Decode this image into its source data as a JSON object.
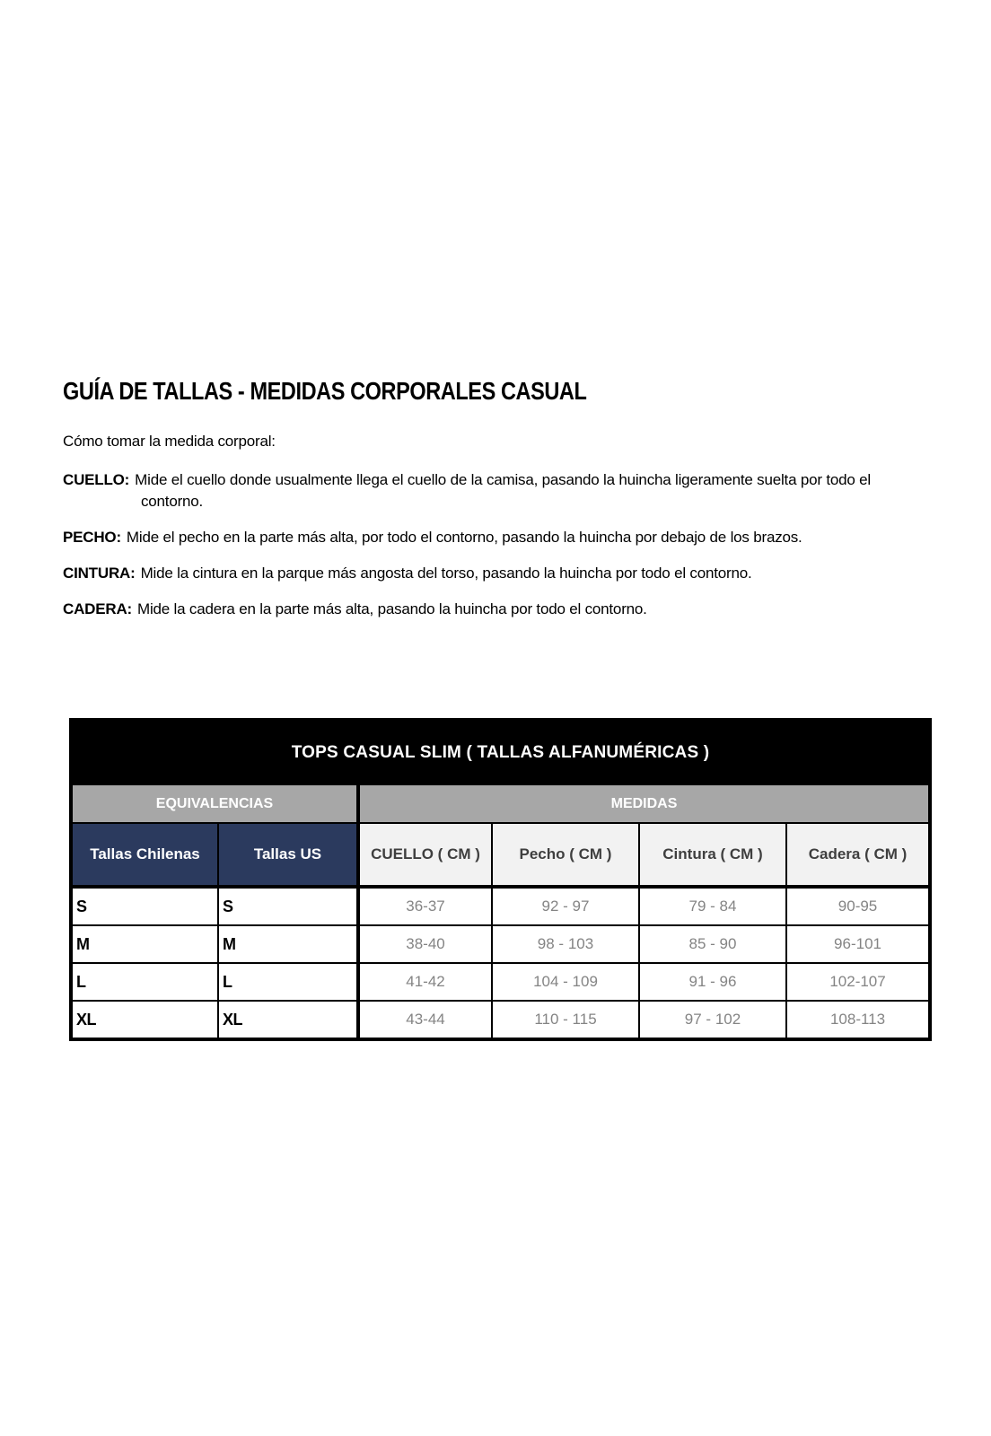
{
  "page": {
    "title": "GUÍA DE TALLAS - MEDIDAS CORPORALES CASUAL",
    "intro": "Cómo tomar la medida corporal:"
  },
  "instructions": [
    {
      "label": "CUELLO:",
      "text": "Mide el cuello donde usualmente llega el cuello de la camisa, pasando la huincha ligeramente suelta por todo el contorno."
    },
    {
      "label": "PECHO:",
      "text": "Mide el pecho en la parte más alta, por todo el contorno, pasando la huincha por debajo de los brazos."
    },
    {
      "label": "CINTURA:",
      "text": "Mide la cintura en la parque más angosta del torso, pasando la huincha por todo el contorno."
    },
    {
      "label": "CADERA:",
      "text": "Mide la cadera en la parte más alta, pasando la huincha por todo el contorno."
    }
  ],
  "size_table": {
    "title": "TOPS CASUAL SLIM ( TALLAS ALFANUMÉRICAS )",
    "groups": {
      "equivalencias": "EQUIVALENCIAS",
      "medidas": "MEDIDAS"
    },
    "columns": [
      "Tallas Chilenas",
      "Tallas US",
      "CUELLO ( CM )",
      "Pecho ( CM )",
      "Cintura ( CM )",
      "Cadera ( CM )"
    ],
    "rows": [
      [
        "S",
        "S",
        "36-37",
        "92 - 97",
        "79 - 84",
        "90-95"
      ],
      [
        "M",
        "M",
        "38-40",
        "98 - 103",
        "85 - 90",
        "96-101"
      ],
      [
        "L",
        "L",
        "41-42",
        "104 - 109",
        "91 - 96",
        "102-107"
      ],
      [
        "XL",
        "XL",
        "43-44",
        "110 - 115",
        "97 - 102",
        "108-113"
      ]
    ]
  },
  "colors": {
    "title_bar_bg": "#000000",
    "group_bar_bg": "#a7a7a7",
    "equivalence_header_bg": "#2b3a5e",
    "measure_header_bg": "#f2f2f2",
    "value_text": "#848484",
    "border": "#000000"
  }
}
